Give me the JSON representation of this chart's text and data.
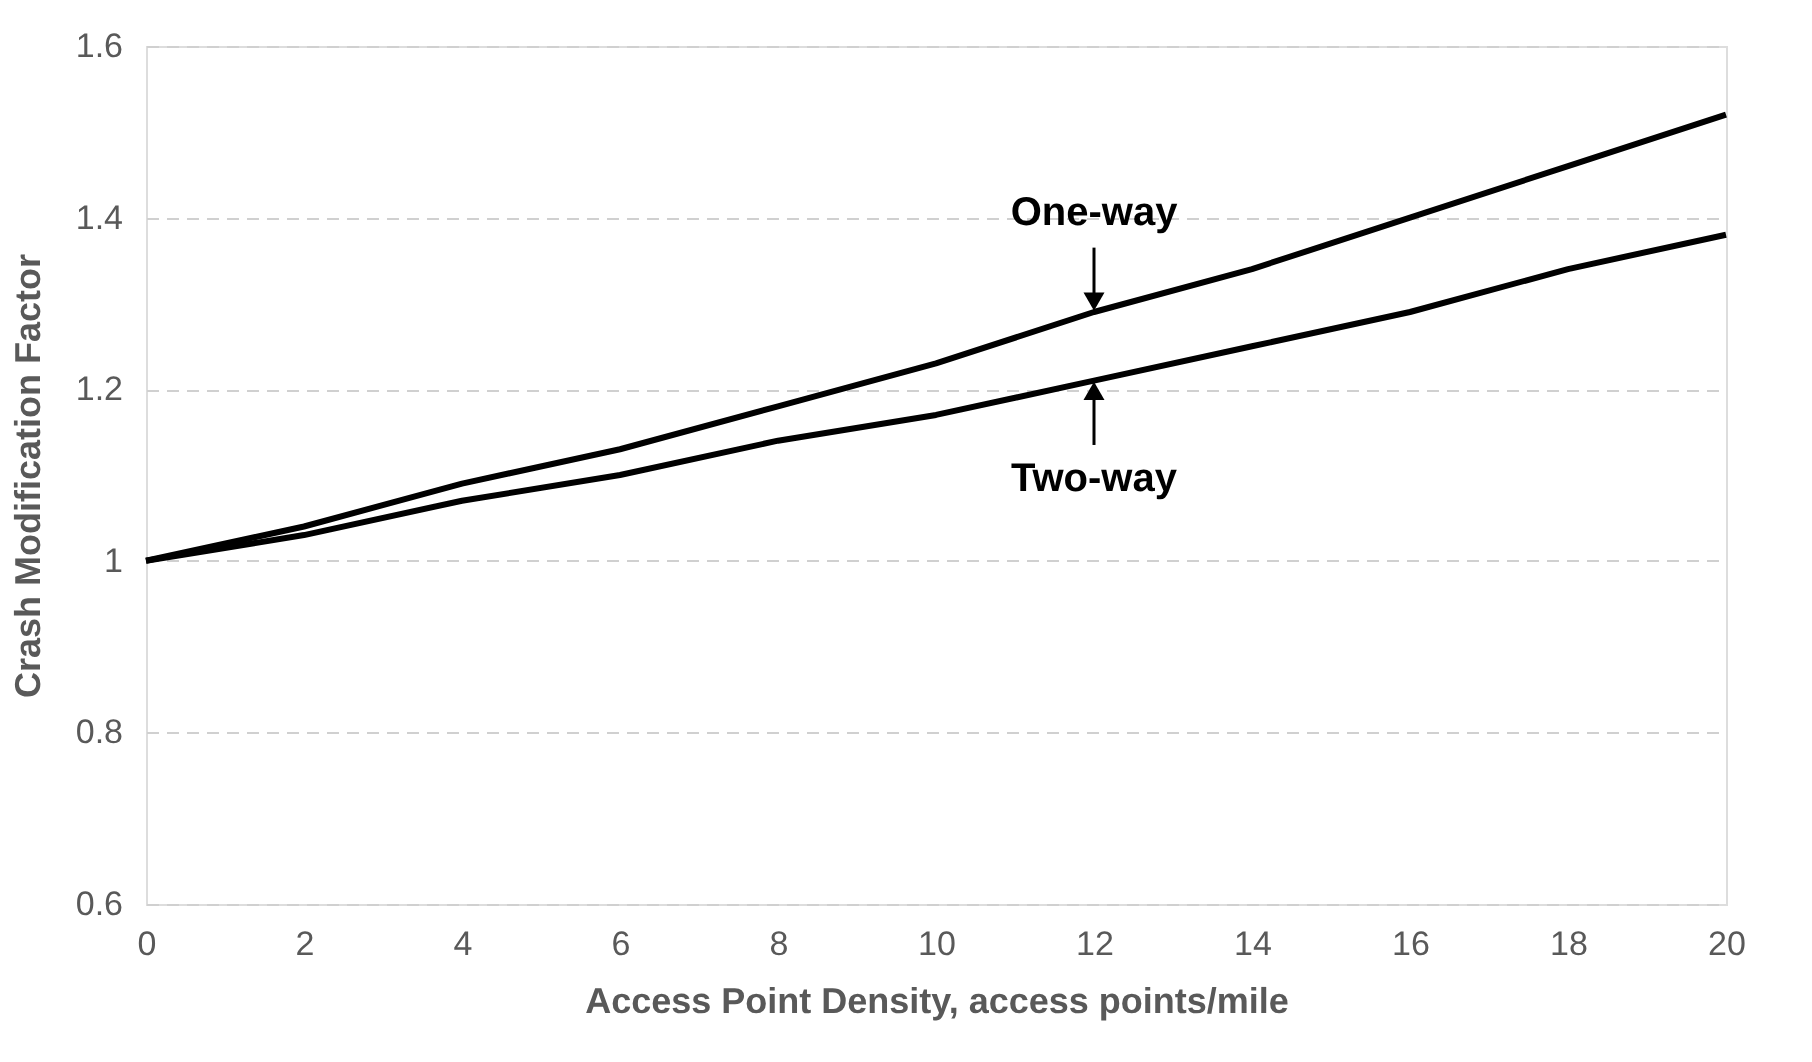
{
  "chart_data": {
    "type": "line",
    "xlabel": "Access Point Density, access points/mile",
    "ylabel": "Crash Modification Factor",
    "x": [
      0,
      2,
      4,
      6,
      8,
      10,
      12,
      14,
      16,
      18,
      20
    ],
    "series": [
      {
        "name": "One-way",
        "color": "#000000",
        "values": [
          1.0,
          1.04,
          1.09,
          1.13,
          1.18,
          1.23,
          1.29,
          1.34,
          1.4,
          1.46,
          1.52
        ]
      },
      {
        "name": "Two-way",
        "color": "#000000",
        "values": [
          1.0,
          1.03,
          1.07,
          1.1,
          1.14,
          1.17,
          1.21,
          1.25,
          1.29,
          1.34,
          1.38
        ]
      }
    ],
    "xlim": [
      0,
      20
    ],
    "xticks": [
      0,
      2,
      4,
      6,
      8,
      10,
      12,
      14,
      16,
      18,
      20
    ],
    "ylim": [
      0.6,
      1.6
    ],
    "yticks": [
      0.6,
      0.8,
      {
        "value": 1,
        "label": "1"
      },
      1.2,
      1.4,
      1.6
    ],
    "grid": "y",
    "marker": "none",
    "line_style": "solid"
  }
}
